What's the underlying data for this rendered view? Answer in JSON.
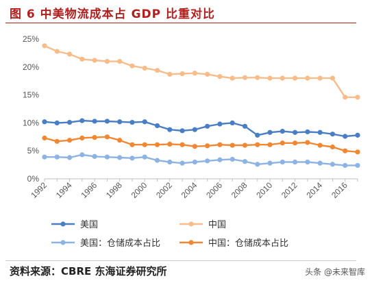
{
  "figure": {
    "title": "图 6  中美物流成本占 GDP 比重对比",
    "source": "资料来源：CBRE  东海证券研究所",
    "watermark": "头条 @未来智库"
  },
  "chart_data": {
    "type": "line",
    "x": [
      1992,
      1993,
      1994,
      1995,
      1996,
      1997,
      1998,
      1999,
      2000,
      2001,
      2002,
      2003,
      2004,
      2005,
      2006,
      2007,
      2008,
      2009,
      2010,
      2011,
      2012,
      2013,
      2014,
      2015,
      2016,
      2017
    ],
    "x_ticks": [
      "1992",
      "1994",
      "1996",
      "1998",
      "2000",
      "2002",
      "2004",
      "2006",
      "2008",
      "2010",
      "2012",
      "2014",
      "2016"
    ],
    "y_ticks": [
      "0%",
      "5%",
      "10%",
      "15%",
      "20%",
      "25%"
    ],
    "ylim": [
      0,
      25
    ],
    "grid": false,
    "legend_position": "bottom",
    "series": [
      {
        "name": "美国",
        "color": "#4a7ec4",
        "values": [
          10.2,
          10.0,
          10.1,
          10.4,
          10.3,
          10.3,
          10.2,
          10.1,
          10.2,
          9.5,
          8.8,
          8.6,
          8.8,
          9.4,
          9.8,
          10.0,
          9.4,
          7.8,
          8.3,
          8.5,
          8.3,
          8.4,
          8.3,
          8.0,
          7.6,
          7.8
        ]
      },
      {
        "name": "中国",
        "color": "#f7bc8a",
        "values": [
          23.8,
          22.8,
          22.3,
          21.4,
          21.2,
          21.0,
          21.0,
          20.2,
          19.8,
          19.4,
          18.7,
          18.8,
          18.9,
          18.7,
          18.3,
          18.0,
          18.1,
          18.1,
          18.0,
          18.0,
          18.0,
          18.0,
          18.0,
          18.0,
          14.6,
          14.6
        ]
      },
      {
        "name": "美国：仓储成本占比",
        "color": "#8db3e2",
        "values": [
          3.9,
          3.9,
          3.8,
          4.3,
          4.0,
          3.9,
          3.8,
          3.7,
          3.9,
          3.3,
          3.0,
          2.8,
          3.0,
          3.2,
          3.4,
          3.5,
          3.1,
          2.6,
          2.8,
          3.0,
          3.0,
          3.0,
          2.8,
          2.6,
          2.4,
          2.4
        ]
      },
      {
        "name": "中国：仓储成本占比",
        "color": "#f08833",
        "values": [
          7.3,
          6.7,
          6.9,
          7.3,
          7.4,
          7.5,
          6.9,
          6.1,
          6.1,
          6.1,
          6.2,
          6.1,
          5.8,
          5.9,
          6.1,
          6.0,
          6.0,
          6.1,
          6.1,
          6.4,
          6.4,
          6.5,
          6.0,
          5.7,
          5.0,
          4.8
        ]
      }
    ]
  }
}
